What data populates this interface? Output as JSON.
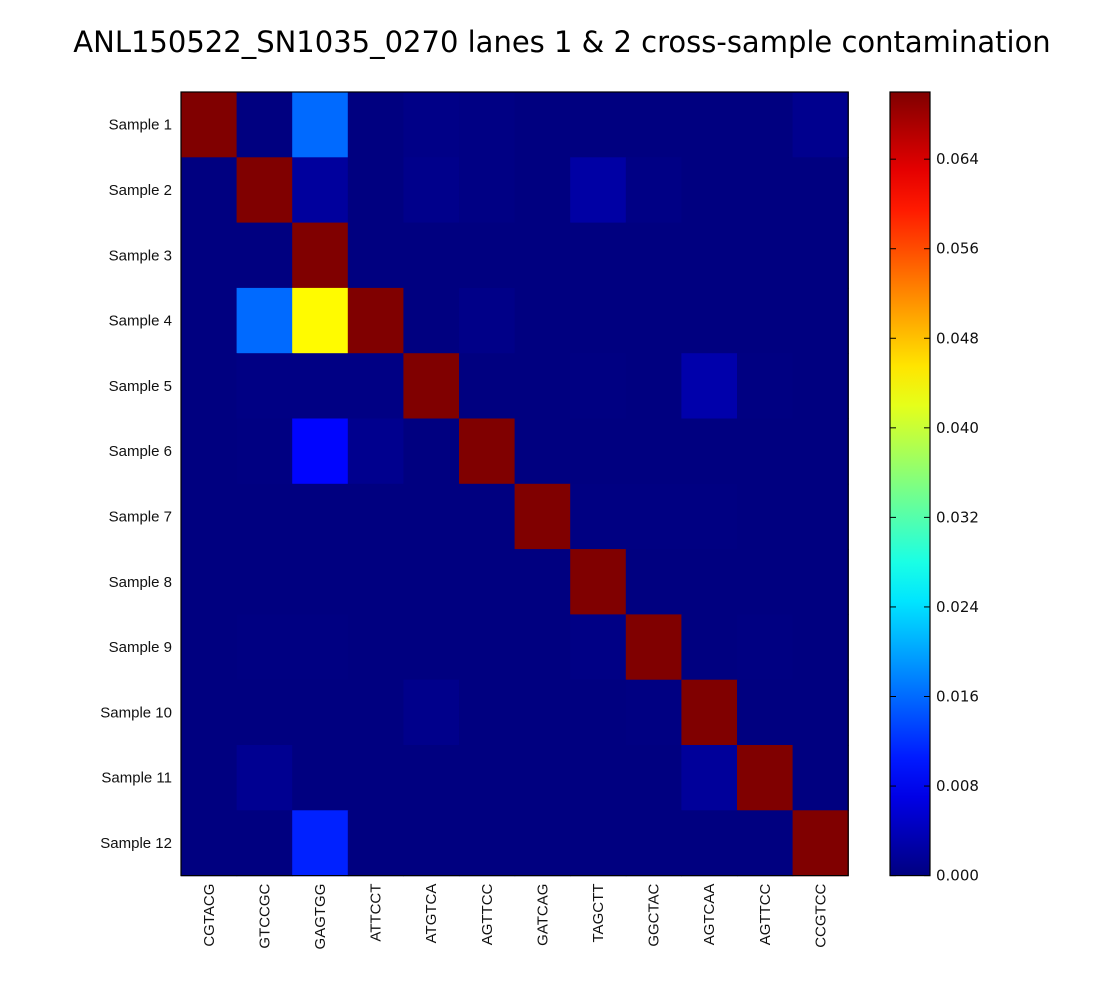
{
  "chart_data": {
    "type": "heatmap",
    "title": "ANL150522_SN1035_0270 lanes 1 & 2 cross-sample contamination",
    "xlabel": "",
    "ylabel": "",
    "y_categories": [
      "Sample 1",
      "Sample 2",
      "Sample 3",
      "Sample 4",
      "Sample 5",
      "Sample 6",
      "Sample 7",
      "Sample 8",
      "Sample 9",
      "Sample 10",
      "Sample 11",
      "Sample 12"
    ],
    "x_categories": [
      "CGTACG",
      "GTCCGC",
      "GAGTGG",
      "ATTCCT",
      "ATGTCA",
      "AGTTCC",
      "GATCAG",
      "TAGCTT",
      "GGCTAC",
      "AGTCAA",
      "AGTTCC",
      "CCGTCC"
    ],
    "colormap": "jet",
    "vmin": 0.0,
    "vmax": 0.07,
    "colorbar_ticks": [
      "0.000",
      "0.008",
      "0.016",
      "0.024",
      "0.032",
      "0.040",
      "0.048",
      "0.056",
      "0.064"
    ],
    "values": [
      [
        0.07,
        0.0,
        0.016,
        0.0,
        0.0005,
        0.0003,
        0.0,
        0.0,
        0.0,
        0.0,
        0.0,
        0.001
      ],
      [
        0.0,
        0.07,
        0.002,
        0.0,
        0.0008,
        0.0003,
        0.0,
        0.0025,
        0.0004,
        0.0,
        0.0,
        0.0
      ],
      [
        0.0,
        0.0,
        0.07,
        0.0,
        0.0,
        0.0,
        0.0,
        0.0,
        0.0,
        0.0,
        0.0,
        0.0
      ],
      [
        0.0,
        0.016,
        0.044,
        0.07,
        0.0,
        0.0006,
        0.0,
        0.0,
        0.0,
        0.0,
        0.0,
        0.0
      ],
      [
        0.0,
        0.0003,
        0.0003,
        0.0003,
        0.07,
        0.0,
        0.0,
        0.0002,
        0.0,
        0.003,
        0.0002,
        0.0
      ],
      [
        0.0,
        0.0002,
        0.009,
        0.001,
        0.0,
        0.07,
        0.0,
        0.0,
        0.0,
        0.0,
        0.0,
        0.0
      ],
      [
        0.0,
        0.0,
        0.0,
        0.0,
        0.0,
        0.0,
        0.07,
        0.0002,
        0.0002,
        0.0002,
        0.0,
        0.0
      ],
      [
        0.0,
        0.0,
        0.0,
        0.0,
        0.0,
        0.0,
        0.0,
        0.07,
        0.0,
        0.0,
        0.0,
        0.0
      ],
      [
        0.0,
        0.0002,
        0.0002,
        0.0,
        0.0,
        0.0,
        0.0,
        0.0004,
        0.07,
        0.0,
        0.0002,
        0.0
      ],
      [
        0.0,
        0.0,
        0.0,
        0.0,
        0.0008,
        0.0,
        0.0,
        0.0,
        0.0002,
        0.07,
        0.0,
        0.0
      ],
      [
        0.0,
        0.0012,
        0.0,
        0.0,
        0.0,
        0.0,
        0.0,
        0.0,
        0.0,
        0.0018,
        0.07,
        0.0
      ],
      [
        0.0,
        0.0,
        0.011,
        0.0,
        0.0,
        0.0,
        0.0,
        0.0,
        0.0,
        0.0,
        0.0,
        0.07
      ]
    ]
  }
}
